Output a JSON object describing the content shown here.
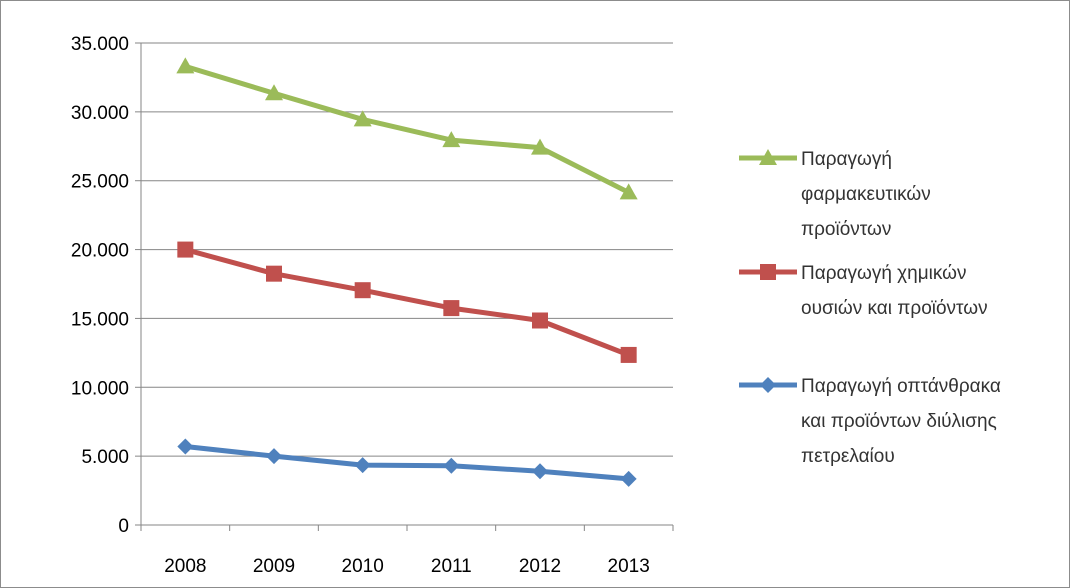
{
  "chart_data": {
    "type": "line",
    "categories": [
      "2008",
      "2009",
      "2010",
      "2011",
      "2012",
      "2013"
    ],
    "ylim": [
      0,
      35000
    ],
    "yticks": [
      0,
      5000,
      10000,
      15000,
      20000,
      25000,
      30000,
      35000
    ],
    "ytick_labels": [
      "0",
      "5.000",
      "10.000",
      "15.000",
      "20.000",
      "25.000",
      "30.000",
      "35.000"
    ],
    "grid": "horizontal",
    "legend_position": "right",
    "series": [
      {
        "name": "Παραγωγή φαρμακευτικών προϊόντων",
        "legend_lines": [
          "Παραγωγή",
          "φαρμακευτικών",
          "προϊόντων"
        ],
        "values": [
          33300,
          31350,
          29450,
          27950,
          27400,
          24150
        ],
        "color": "#9bbb59",
        "marker": "triangle"
      },
      {
        "name": "Παραγωγή χημικών ουσιών και προϊόντων",
        "legend_lines": [
          "Παραγωγή χημικών",
          "ουσιών και προϊόντων"
        ],
        "values": [
          20000,
          18250,
          17050,
          15750,
          14850,
          12350
        ],
        "color": "#c0504d",
        "marker": "square"
      },
      {
        "name": "Παραγωγή οπτάνθρακα και προϊόντων διύλισης πετρελαίου",
        "legend_lines": [
          "Παραγωγή οπτάνθρακα",
          "και προϊόντων διύλισης",
          "πετρελαίου"
        ],
        "values": [
          5700,
          5000,
          4350,
          4300,
          3900,
          3350
        ],
        "color": "#4f81bd",
        "marker": "diamond"
      }
    ]
  }
}
